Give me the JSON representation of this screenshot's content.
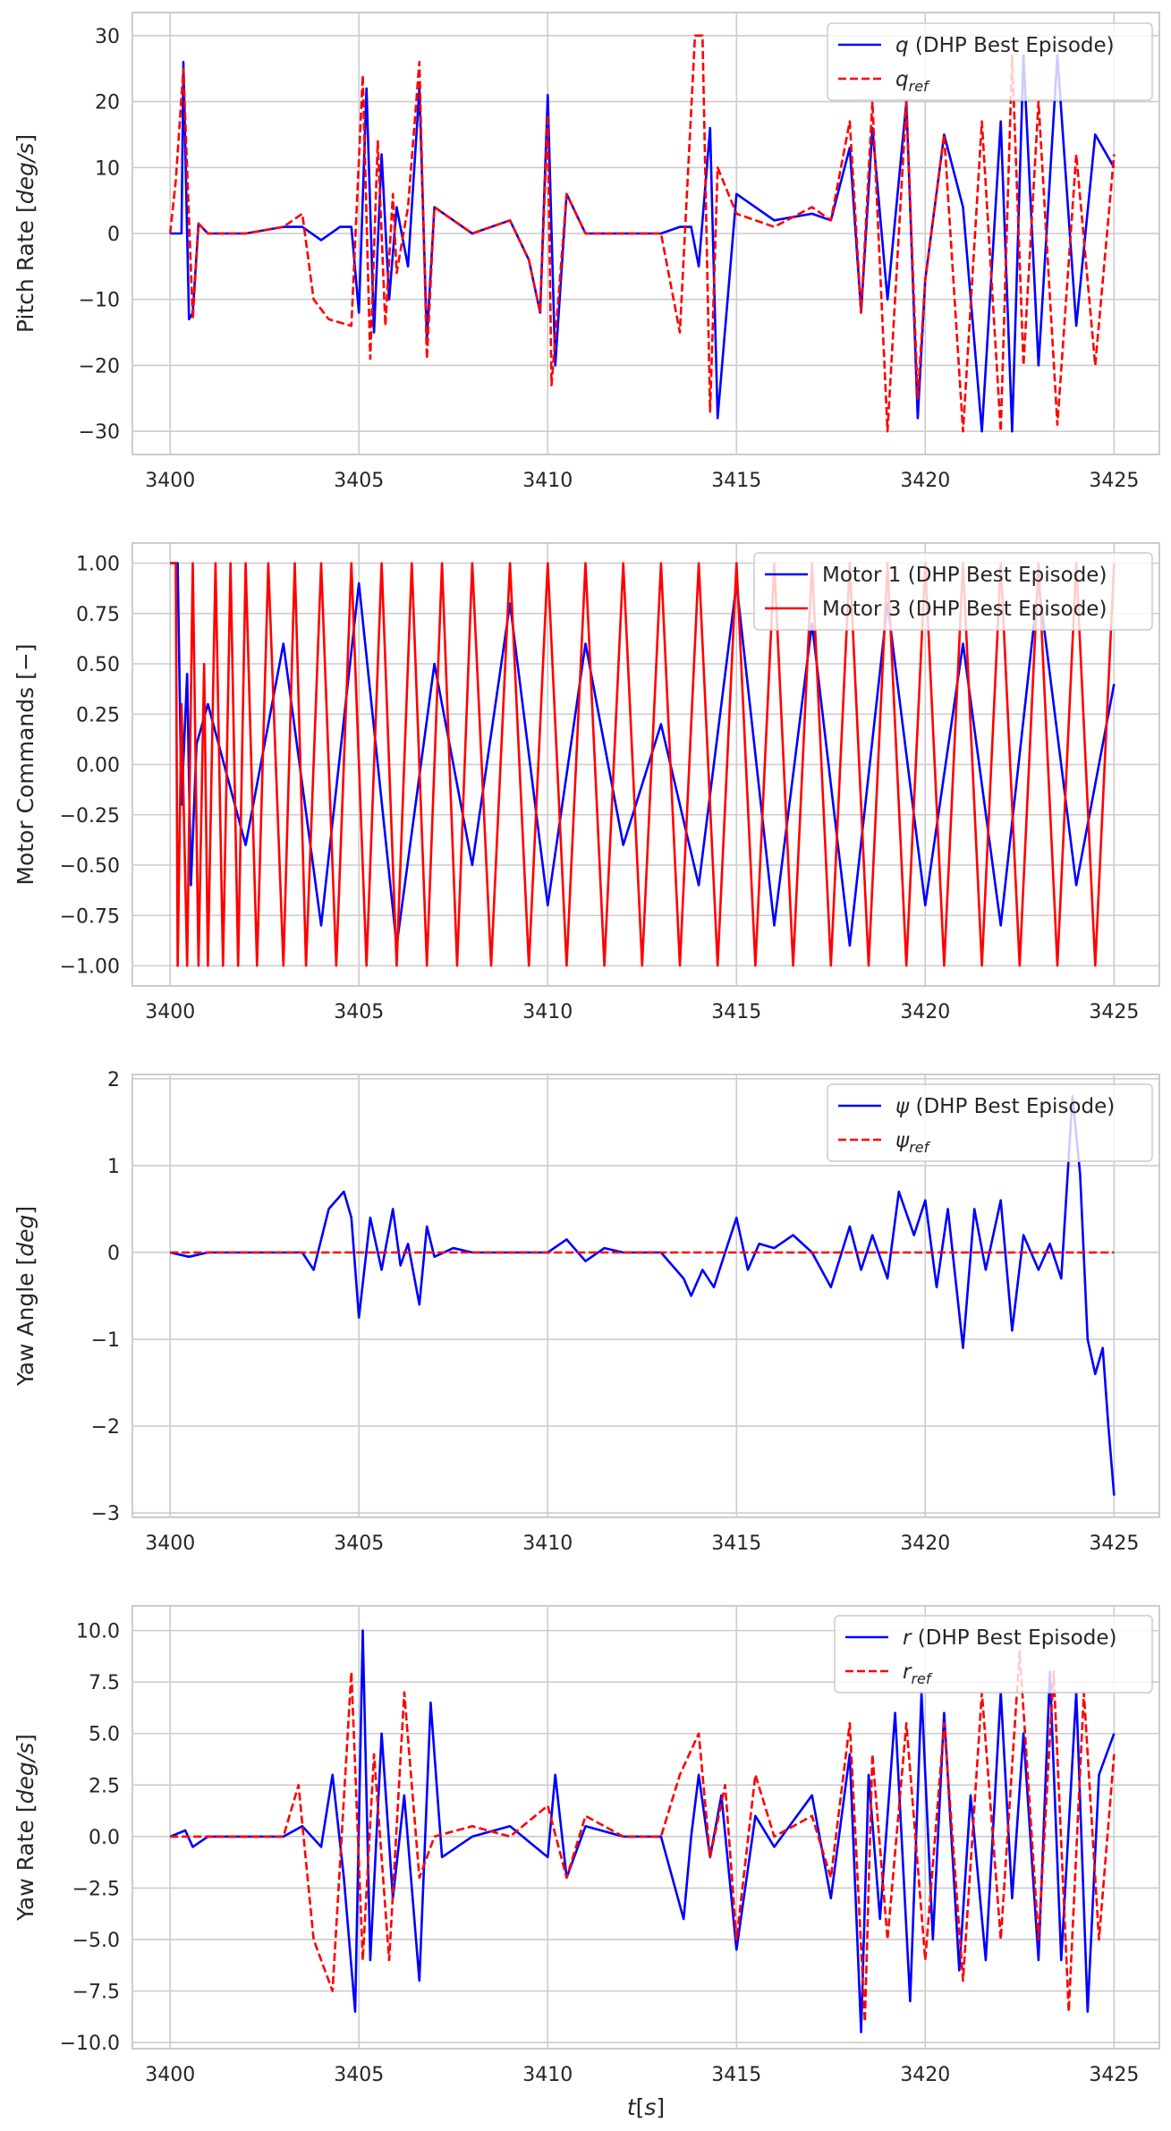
{
  "colors": {
    "blue": "#0000ff",
    "red": "#ff0000",
    "grid": "#cccccc",
    "frame": "#cccccc",
    "background": "#ffffff"
  },
  "chart_data": [
    {
      "type": "line",
      "ylabel": "Pitch Rate [deg/s]",
      "ylabel_parts": {
        "pre": "Pitch Rate [",
        "unit": "deg/s",
        "post": "]"
      },
      "xlabel": "",
      "xlim": [
        3399,
        3426.2
      ],
      "ylim": [
        -33.5,
        33.5
      ],
      "xticks": [
        3400,
        3405,
        3410,
        3415,
        3420,
        3425
      ],
      "xtick_labels": [
        "3400",
        "3405",
        "3410",
        "3415",
        "3420",
        "3425"
      ],
      "yticks": [
        30,
        20,
        10,
        0,
        -10,
        -20,
        -30
      ],
      "ytick_labels": [
        "30",
        "20",
        "10",
        "0",
        "−10",
        "−20",
        "−30"
      ],
      "grid": true,
      "legend_position": "top-right",
      "series": [
        {
          "name": "q (DHP Best Episode)",
          "name_parts": {
            "sym": "q",
            "rest": " (DHP Best Episode)"
          },
          "color": "#0000ff",
          "dash": "solid",
          "x": [
            3400,
            3400.3,
            3400.35,
            3400.5,
            3400.6,
            3400.75,
            3401,
            3402,
            3403,
            3403.5,
            3404,
            3404.5,
            3404.8,
            3405,
            3405.2,
            3405.4,
            3405.6,
            3405.8,
            3406,
            3406.3,
            3406.6,
            3406.8,
            3407,
            3408,
            3409,
            3409.5,
            3409.8,
            3410,
            3410.2,
            3410.5,
            3411,
            3412,
            3413,
            3413.5,
            3413.8,
            3414,
            3414.3,
            3414.5,
            3415,
            3416,
            3417,
            3417.5,
            3418,
            3418.3,
            3418.6,
            3419,
            3419.5,
            3419.8,
            3420,
            3420.5,
            3421,
            3421.5,
            3422,
            3422.3,
            3422.6,
            3423,
            3423.5,
            3424,
            3424.5,
            3425
          ],
          "y": [
            0,
            0,
            26,
            -13,
            -12,
            1.5,
            0,
            0,
            1,
            1,
            -1,
            1,
            1,
            -12,
            22,
            -15,
            12,
            -10,
            4,
            -5,
            22,
            -16,
            4,
            0,
            2,
            -4,
            -12,
            21,
            -20,
            6,
            0,
            0,
            0,
            1,
            1,
            -5,
            16,
            -28,
            6,
            2,
            3,
            2,
            13,
            -12,
            16,
            -10,
            20,
            -28,
            -7,
            15,
            4,
            -30,
            17,
            -30,
            27,
            -20,
            27,
            -14,
            15,
            10
          ]
        },
        {
          "name": "q_ref",
          "name_parts": {
            "sym": "q",
            "sub": "ref"
          },
          "color": "#ff0000",
          "dash": "dashed",
          "x": [
            3400,
            3400.15,
            3400.35,
            3400.6,
            3400.75,
            3401,
            3402,
            3403,
            3403.5,
            3403.8,
            3404.2,
            3404.8,
            3405.1,
            3405.3,
            3405.5,
            3405.7,
            3405.9,
            3406,
            3406.3,
            3406.6,
            3406.8,
            3407,
            3408,
            3409,
            3409.5,
            3409.8,
            3410,
            3410.1,
            3410.5,
            3411,
            3412,
            3413,
            3413.5,
            3413.9,
            3414.1,
            3414.3,
            3414.5,
            3415,
            3416,
            3417,
            3417.5,
            3418,
            3418.3,
            3418.6,
            3419,
            3419.5,
            3419.8,
            3420,
            3420.5,
            3421,
            3421.5,
            3422,
            3422.3,
            3422.6,
            3423,
            3423.5,
            3424,
            3424.5,
            3425
          ],
          "y": [
            0,
            8,
            25,
            -13,
            1.5,
            0,
            0,
            1,
            3,
            -10,
            -13,
            -14,
            24,
            -19,
            14,
            -14,
            6,
            -6,
            4,
            26,
            -19,
            4,
            0,
            2,
            -4,
            -12,
            18,
            -23,
            6,
            0,
            0,
            0,
            -15,
            30,
            30,
            -27,
            10,
            3,
            1,
            4,
            2,
            17,
            -12,
            20,
            -30,
            20,
            -25,
            -7,
            15,
            -30,
            17,
            -30,
            27,
            -20,
            20,
            -29,
            12,
            -20,
            12
          ]
        }
      ]
    },
    {
      "type": "line",
      "ylabel": "Motor Commands [−]",
      "ylabel_parts": {
        "pre": "Motor Commands [",
        "unit": "−",
        "post": "]"
      },
      "xlabel": "",
      "xlim": [
        3399,
        3426.2
      ],
      "ylim": [
        -1.1,
        1.1
      ],
      "xticks": [
        3400,
        3405,
        3410,
        3415,
        3420,
        3425
      ],
      "xtick_labels": [
        "3400",
        "3405",
        "3410",
        "3415",
        "3420",
        "3425"
      ],
      "yticks": [
        1.0,
        0.75,
        0.5,
        0.25,
        0.0,
        -0.25,
        -0.5,
        -0.75,
        -1.0
      ],
      "ytick_labels": [
        "1.00",
        "0.75",
        "0.50",
        "0.25",
        "0.00",
        "−0.25",
        "−0.50",
        "−0.75",
        "−1.00"
      ],
      "grid": true,
      "legend_position": "top-right",
      "series": [
        {
          "name": "Motor 1 (DHP Best Episode)",
          "color": "#0000ff",
          "dash": "solid",
          "x": [
            3400,
            3400.2,
            3400.3,
            3400.45,
            3400.55,
            3400.7,
            3401,
            3402,
            3403,
            3404,
            3405,
            3406,
            3407,
            3408,
            3409,
            3410,
            3411,
            3412,
            3413,
            3414,
            3415,
            3416,
            3417,
            3418,
            3419,
            3420,
            3421,
            3422,
            3423,
            3424,
            3425
          ],
          "y": [
            1,
            1,
            -0.2,
            0.45,
            -0.6,
            0.1,
            0.3,
            -0.4,
            0.6,
            -0.8,
            0.9,
            -0.9,
            0.5,
            -0.5,
            0.8,
            -0.7,
            0.6,
            -0.4,
            0.2,
            -0.6,
            0.9,
            -0.8,
            0.7,
            -0.9,
            0.8,
            -0.7,
            0.6,
            -0.8,
            0.9,
            -0.6,
            0.4
          ]
        },
        {
          "name": "Motor 3 (DHP Best Episode)",
          "color": "#ff0000",
          "dash": "solid",
          "x": [
            3400,
            3400.15,
            3400.2,
            3400.3,
            3400.45,
            3400.6,
            3400.75,
            3400.9,
            3401,
            3401.2,
            3401.4,
            3401.6,
            3401.8,
            3402,
            3402.3,
            3402.6,
            3403,
            3403.3,
            3403.6,
            3404,
            3404.4,
            3404.8,
            3405.2,
            3405.6,
            3406,
            3406.4,
            3406.8,
            3407.2,
            3407.6,
            3408,
            3408.5,
            3409,
            3409.5,
            3410,
            3410.5,
            3411,
            3411.5,
            3412,
            3412.5,
            3413,
            3413.5,
            3414,
            3414.5,
            3415,
            3415.5,
            3416,
            3416.5,
            3417,
            3417.5,
            3418,
            3418.5,
            3419,
            3419.5,
            3420,
            3420.5,
            3421,
            3421.5,
            3422,
            3422.5,
            3423,
            3423.5,
            3424,
            3424.5,
            3425
          ],
          "y": [
            1,
            1,
            -1,
            0.3,
            -1,
            1,
            -1,
            0.5,
            -1,
            1,
            -1,
            1,
            -1,
            1,
            -1,
            1,
            -1,
            1,
            -1,
            1,
            -1,
            1,
            -1,
            1,
            -1,
            1,
            -1,
            1,
            -1,
            1,
            -1,
            1,
            -1,
            1,
            -1,
            1,
            -1,
            1,
            -1,
            1,
            -1,
            1,
            -1,
            1,
            -1,
            1,
            -1,
            1,
            -1,
            1,
            -1,
            1,
            -1,
            1,
            -1,
            1,
            -1,
            1,
            -1,
            1,
            -1,
            1,
            -1,
            1
          ]
        }
      ]
    },
    {
      "type": "line",
      "ylabel": "Yaw Angle [deg]",
      "ylabel_parts": {
        "pre": "Yaw Angle [",
        "unit": "deg",
        "post": "]"
      },
      "xlabel": "",
      "xlim": [
        3399,
        3426.2
      ],
      "ylim": [
        -3.05,
        2.05
      ],
      "xticks": [
        3400,
        3405,
        3410,
        3415,
        3420,
        3425
      ],
      "xtick_labels": [
        "3400",
        "3405",
        "3410",
        "3415",
        "3420",
        "3425"
      ],
      "yticks": [
        2,
        1,
        0,
        -1,
        -2,
        -3
      ],
      "ytick_labels": [
        "2",
        "1",
        "0",
        "−1",
        "−2",
        "−3"
      ],
      "grid": true,
      "legend_position": "top-right",
      "series": [
        {
          "name": "ψ (DHP Best Episode)",
          "name_parts": {
            "sym": "ψ",
            "rest": " (DHP Best Episode)"
          },
          "color": "#0000ff",
          "dash": "solid",
          "x": [
            3400,
            3400.5,
            3401,
            3402,
            3403,
            3403.5,
            3403.8,
            3404.2,
            3404.6,
            3404.8,
            3405,
            3405.3,
            3405.6,
            3405.9,
            3406.1,
            3406.3,
            3406.6,
            3406.8,
            3407,
            3407.5,
            3408,
            3409,
            3410,
            3410.5,
            3411,
            3411.5,
            3412,
            3413,
            3413.6,
            3413.8,
            3414.1,
            3414.4,
            3414.7,
            3415,
            3415.3,
            3415.6,
            3416,
            3416.5,
            3417,
            3417.5,
            3418,
            3418.3,
            3418.6,
            3419,
            3419.3,
            3419.7,
            3420,
            3420.3,
            3420.6,
            3421,
            3421.3,
            3421.6,
            3422,
            3422.3,
            3422.6,
            3423,
            3423.3,
            3423.6,
            3423.9,
            3424.1,
            3424.3,
            3424.5,
            3424.7,
            3424.85,
            3425
          ],
          "y": [
            0,
            -0.05,
            0,
            0,
            0,
            0,
            -0.2,
            0.5,
            0.7,
            0.4,
            -0.75,
            0.4,
            -0.2,
            0.5,
            -0.15,
            0.1,
            -0.6,
            0.3,
            -0.05,
            0.05,
            0,
            0,
            0,
            0.15,
            -0.1,
            0.05,
            0,
            0,
            -0.3,
            -0.5,
            -0.2,
            -0.4,
            0,
            0.4,
            -0.2,
            0.1,
            0.05,
            0.2,
            0,
            -0.4,
            0.3,
            -0.2,
            0.2,
            -0.3,
            0.7,
            0.2,
            0.6,
            -0.4,
            0.5,
            -1.1,
            0.5,
            -0.2,
            0.6,
            -0.9,
            0.2,
            -0.2,
            0.1,
            -0.3,
            1.8,
            0.9,
            -1.0,
            -1.4,
            -1.1,
            -2.0,
            -2.8
          ]
        },
        {
          "name": "ψ_ref",
          "name_parts": {
            "sym": "ψ",
            "sub": "ref"
          },
          "color": "#ff0000",
          "dash": "dashed",
          "x": [
            3400,
            3425
          ],
          "y": [
            0,
            0
          ]
        }
      ]
    },
    {
      "type": "line",
      "ylabel": "Yaw Rate [deg/s]",
      "ylabel_parts": {
        "pre": "Yaw Rate [",
        "unit": "deg/s",
        "post": "]"
      },
      "xlabel": "t[s]",
      "xlabel_parts": {
        "sym": "t",
        "rest": "[",
        "unit": "s",
        "post": "]"
      },
      "xlim": [
        3399,
        3426.2
      ],
      "ylim": [
        -10.3,
        11.2
      ],
      "xticks": [
        3400,
        3405,
        3410,
        3415,
        3420,
        3425
      ],
      "xtick_labels": [
        "3400",
        "3405",
        "3410",
        "3415",
        "3420",
        "3425"
      ],
      "yticks": [
        10.0,
        7.5,
        5.0,
        2.5,
        0.0,
        -2.5,
        -5.0,
        -7.5,
        -10.0
      ],
      "ytick_labels": [
        "10.0",
        "7.5",
        "5.0",
        "2.5",
        "0.0",
        "−2.5",
        "−5.0",
        "−7.5",
        "−10.0"
      ],
      "grid": true,
      "legend_position": "top-right",
      "series": [
        {
          "name": "r (DHP Best Episode)",
          "name_parts": {
            "sym": "r",
            "rest": " (DHP Best Episode)"
          },
          "color": "#0000ff",
          "dash": "solid",
          "x": [
            3400,
            3400.4,
            3400.6,
            3401,
            3402,
            3403,
            3403.5,
            3404,
            3404.3,
            3404.6,
            3404.9,
            3405.1,
            3405.3,
            3405.6,
            3405.9,
            3406.2,
            3406.6,
            3406.9,
            3407.2,
            3408,
            3409,
            3410,
            3410.2,
            3410.5,
            3411,
            3412,
            3413,
            3413.6,
            3413.8,
            3414,
            3414.3,
            3414.6,
            3415,
            3415.5,
            3416,
            3417,
            3417.5,
            3418,
            3418.3,
            3418.5,
            3418.8,
            3419.2,
            3419.6,
            3419.9,
            3420.2,
            3420.5,
            3420.9,
            3421.2,
            3421.6,
            3422,
            3422.3,
            3422.6,
            3423,
            3423.3,
            3423.6,
            3424,
            3424.3,
            3424.6,
            3425
          ],
          "y": [
            0,
            0.3,
            -0.5,
            0,
            0,
            0,
            0.5,
            -0.5,
            3,
            -2,
            -8.5,
            10,
            -6,
            5,
            -3,
            2,
            -7,
            6.5,
            -1,
            0,
            0.5,
            -1,
            3,
            -2,
            0.5,
            0,
            0,
            -4,
            0,
            3,
            -1,
            2,
            -5.5,
            1,
            -0.5,
            2,
            -3,
            4,
            -9.5,
            3,
            -4,
            6,
            -8,
            7,
            -5,
            6,
            -6.5,
            2,
            -6,
            7,
            -3,
            5,
            -6,
            8,
            -6,
            7,
            -8.5,
            3,
            5
          ]
        },
        {
          "name": "r_ref",
          "name_parts": {
            "sym": "r",
            "sub": "ref"
          },
          "color": "#ff0000",
          "dash": "dashed",
          "x": [
            3400,
            3401,
            3402,
            3403,
            3403.4,
            3403.8,
            3404.3,
            3404.8,
            3405.1,
            3405.4,
            3405.8,
            3406.2,
            3406.6,
            3407,
            3408,
            3409,
            3410,
            3410.5,
            3411,
            3412,
            3413,
            3413.5,
            3414,
            3414.3,
            3414.7,
            3415,
            3415.5,
            3416,
            3417,
            3417.5,
            3418,
            3418.4,
            3418.6,
            3419,
            3419.5,
            3420,
            3420.5,
            3421,
            3421.5,
            3422,
            3422.5,
            3423,
            3423.4,
            3423.8,
            3424.2,
            3424.6,
            3425
          ],
          "y": [
            0,
            0,
            0,
            0,
            2.5,
            -5,
            -7.5,
            8,
            -6,
            4,
            -6,
            7,
            -2,
            0,
            0.5,
            0,
            1.5,
            -2,
            1,
            0,
            0,
            3,
            5,
            -1,
            2.5,
            -5,
            3,
            0,
            1,
            -2,
            5.5,
            -9,
            4,
            -5,
            5.5,
            -6,
            5.5,
            -7,
            7,
            -5,
            9,
            -5,
            8,
            -8.5,
            7,
            -5,
            4
          ]
        }
      ]
    }
  ]
}
